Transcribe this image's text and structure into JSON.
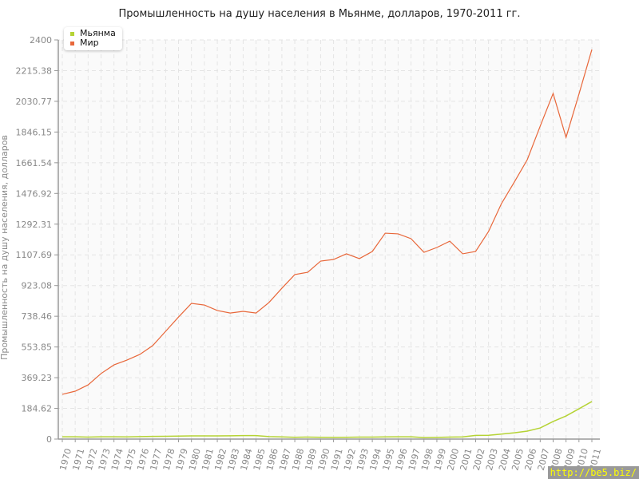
{
  "chart_data": {
    "type": "line",
    "title": "Промышленность на душу населения в Мьянме, долларов, 1970-2011 гг.",
    "xlabel": "",
    "ylabel": "Промышленность на душу населения, долларов",
    "ylim": [
      0,
      2400
    ],
    "yticks": [
      "0",
      "184.62",
      "369.23",
      "553.85",
      "738.46",
      "923.08",
      "1107.69",
      "1292.31",
      "1476.92",
      "1661.54",
      "1846.15",
      "2030.77",
      "2215.38",
      "2400"
    ],
    "x": [
      1970,
      1971,
      1972,
      1973,
      1974,
      1975,
      1976,
      1977,
      1978,
      1979,
      1980,
      1981,
      1982,
      1983,
      1984,
      1985,
      1986,
      1987,
      1988,
      1989,
      1990,
      1991,
      1992,
      1993,
      1994,
      1995,
      1996,
      1997,
      1998,
      1999,
      2000,
      2001,
      2002,
      2003,
      2004,
      2005,
      2006,
      2007,
      2008,
      2009,
      2010,
      2011
    ],
    "grid": true,
    "legend_position": "top-left",
    "series": [
      {
        "name": "Мьянма",
        "color": "#b5d334",
        "values": [
          14,
          14,
          12,
          14,
          14,
          13,
          15,
          16,
          17,
          18,
          19,
          19,
          19,
          20,
          21,
          21,
          15,
          13,
          11,
          12,
          11,
          10,
          11,
          12,
          12,
          13,
          14,
          14,
          9,
          10,
          12,
          13,
          22,
          23,
          30,
          38,
          48,
          67,
          106,
          139,
          182,
          226
        ]
      },
      {
        "name": "Мир",
        "color": "#e8673a",
        "values": [
          269,
          288,
          326,
          394,
          446,
          475,
          509,
          562,
          648,
          734,
          816,
          806,
          773,
          758,
          768,
          758,
          821,
          907,
          989,
          1003,
          1070,
          1080,
          1114,
          1085,
          1128,
          1238,
          1234,
          1205,
          1123,
          1152,
          1190,
          1114,
          1128,
          1248,
          1416,
          1546,
          1680,
          1882,
          2078,
          1814,
          2074,
          2342
        ]
      }
    ]
  },
  "watermark": "http://be5.biz/"
}
